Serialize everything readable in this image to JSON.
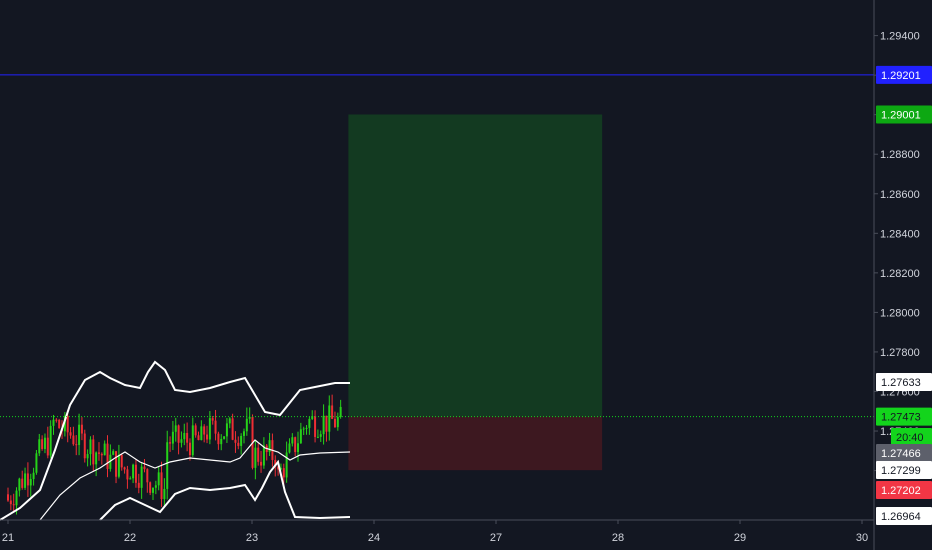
{
  "chart_data": {
    "type": "candlestick",
    "x_ticks": [
      "21",
      "22",
      "23",
      "24",
      "27",
      "28",
      "29",
      "30"
    ],
    "y_ticks": [
      "1.29400",
      "1.29200",
      "1.29000",
      "1.28800",
      "1.28600",
      "1.28400",
      "1.28200",
      "1.28000",
      "1.27800",
      "1.27600",
      "1.27400",
      "1.27200"
    ],
    "ylim": [
      1.2695,
      1.2958
    ],
    "price_badges": [
      {
        "name": "blue-line",
        "label": "1.29201",
        "value": 1.29201,
        "bg": "#2121ff",
        "fg": "#ffffff"
      },
      {
        "name": "target",
        "label": "1.29001",
        "value": 1.29001,
        "bg": "#0da812",
        "fg": "#ffffff"
      },
      {
        "name": "upper-band",
        "label": "1.27633",
        "value": 1.27633,
        "bg": "#ffffff",
        "fg": "#131722"
      },
      {
        "name": "last-price",
        "label": "1.27473",
        "value": 1.27473,
        "bg": "#13d41c",
        "fg": "#131722"
      },
      {
        "name": "countdown",
        "label": "20:40",
        "value": 1.2741,
        "bg": "#13d41c",
        "fg": "#131722"
      },
      {
        "name": "mid-band",
        "label": "1.27466",
        "value": 1.27466,
        "bg": "#5d606b",
        "fg": "#ffffff"
      },
      {
        "name": "lower-band",
        "label": "1.27299",
        "value": 1.27299,
        "bg": "#ffffff",
        "fg": "#131722"
      },
      {
        "name": "stop",
        "label": "1.27202",
        "value": 1.27202,
        "bg": "#f23645",
        "fg": "#ffffff"
      },
      {
        "name": "low",
        "label": "1.26964",
        "value": 1.26964,
        "bg": "#ffffff",
        "fg": "#131722"
      }
    ],
    "position": {
      "entry": 1.27473,
      "target": 1.29001,
      "stop": 1.27202
    },
    "horizontal_lines": [
      1.29201
    ],
    "colors": {
      "up": "#26d319",
      "down": "#ef2e34",
      "bands": "#ffffff",
      "profit": "#133a21",
      "loss": "#3d1820",
      "blue": "#2121ff",
      "last": "#13d41c"
    }
  }
}
